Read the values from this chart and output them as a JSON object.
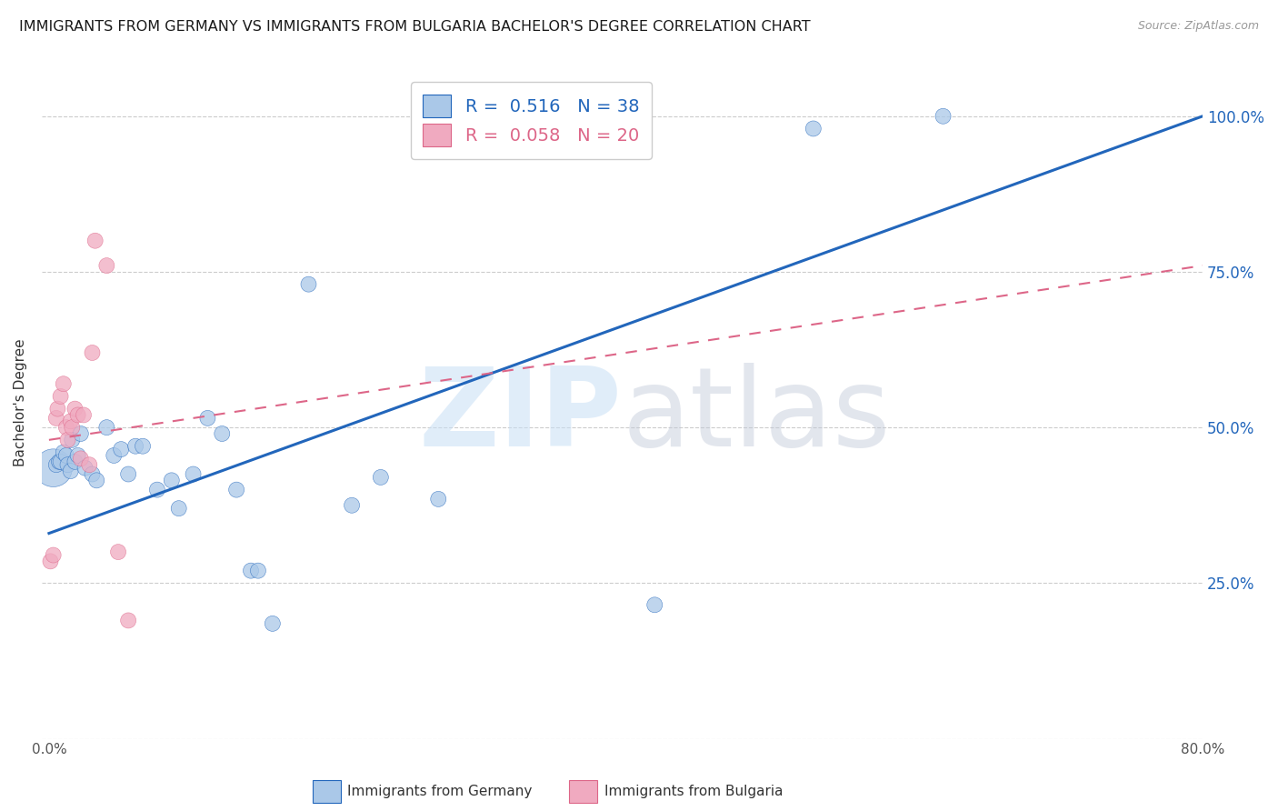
{
  "title": "IMMIGRANTS FROM GERMANY VS IMMIGRANTS FROM BULGARIA BACHELOR'S DEGREE CORRELATION CHART",
  "source_text": "Source: ZipAtlas.com",
  "ylabel": "Bachelor's Degree",
  "watermark_zip": "ZIP",
  "watermark_atlas": "atlas",
  "xlim": [
    -0.005,
    0.8
  ],
  "ylim": [
    0.0,
    1.08
  ],
  "xticks": [
    0.0,
    0.2,
    0.4,
    0.6,
    0.8
  ],
  "xtick_labels": [
    "0.0%",
    "",
    "",
    "",
    "80.0%"
  ],
  "ytick_labels_right": [
    "",
    "25.0%",
    "50.0%",
    "75.0%",
    "100.0%"
  ],
  "yticks_right": [
    0.0,
    0.25,
    0.5,
    0.75,
    1.0
  ],
  "legend_germany": "Immigrants from Germany",
  "legend_bulgaria": "Immigrants from Bulgaria",
  "R_germany": "0.516",
  "N_germany": "38",
  "R_bulgaria": "0.058",
  "N_bulgaria": "20",
  "color_germany": "#aac8e8",
  "color_bulgaria": "#f0aac0",
  "line_color_germany": "#2266bb",
  "line_color_bulgaria": "#dd6688",
  "germany_x": [
    0.003,
    0.005,
    0.007,
    0.008,
    0.01,
    0.012,
    0.013,
    0.015,
    0.016,
    0.018,
    0.02,
    0.022,
    0.025,
    0.03,
    0.033,
    0.04,
    0.045,
    0.05,
    0.055,
    0.06,
    0.065,
    0.075,
    0.085,
    0.09,
    0.1,
    0.11,
    0.12,
    0.13,
    0.14,
    0.145,
    0.155,
    0.18,
    0.21,
    0.23,
    0.27,
    0.42,
    0.53,
    0.62
  ],
  "germany_y": [
    0.435,
    0.44,
    0.445,
    0.445,
    0.46,
    0.455,
    0.44,
    0.43,
    0.48,
    0.445,
    0.455,
    0.49,
    0.435,
    0.425,
    0.415,
    0.5,
    0.455,
    0.465,
    0.425,
    0.47,
    0.47,
    0.4,
    0.415,
    0.37,
    0.425,
    0.515,
    0.49,
    0.4,
    0.27,
    0.27,
    0.185,
    0.73,
    0.375,
    0.42,
    0.385,
    0.215,
    0.98,
    1.0
  ],
  "germany_size": [
    900,
    150,
    150,
    150,
    150,
    150,
    150,
    150,
    150,
    150,
    150,
    150,
    150,
    150,
    150,
    150,
    150,
    150,
    150,
    150,
    150,
    150,
    150,
    150,
    150,
    150,
    150,
    150,
    150,
    150,
    150,
    150,
    150,
    150,
    150,
    150,
    150,
    150
  ],
  "bulgaria_x": [
    0.001,
    0.003,
    0.005,
    0.006,
    0.008,
    0.01,
    0.012,
    0.013,
    0.015,
    0.016,
    0.018,
    0.02,
    0.022,
    0.024,
    0.028,
    0.03,
    0.032,
    0.04,
    0.048,
    0.055
  ],
  "bulgaria_y": [
    0.285,
    0.295,
    0.515,
    0.53,
    0.55,
    0.57,
    0.5,
    0.48,
    0.51,
    0.5,
    0.53,
    0.52,
    0.45,
    0.52,
    0.44,
    0.62,
    0.8,
    0.76,
    0.3,
    0.19
  ],
  "bulgaria_size": [
    150,
    150,
    150,
    150,
    150,
    150,
    150,
    150,
    150,
    150,
    150,
    150,
    150,
    150,
    150,
    150,
    150,
    150,
    150,
    150
  ],
  "blue_line_x0": 0.0,
  "blue_line_y0": 0.33,
  "blue_line_x1": 0.8,
  "blue_line_y1": 1.0,
  "pink_line_x0": 0.0,
  "pink_line_y0": 0.48,
  "pink_line_x1": 0.8,
  "pink_line_y1": 0.76,
  "background_color": "#ffffff",
  "grid_color": "#cccccc",
  "title_fontsize": 11.5,
  "axis_label_fontsize": 11,
  "tick_fontsize": 11,
  "legend_fontsize": 14
}
